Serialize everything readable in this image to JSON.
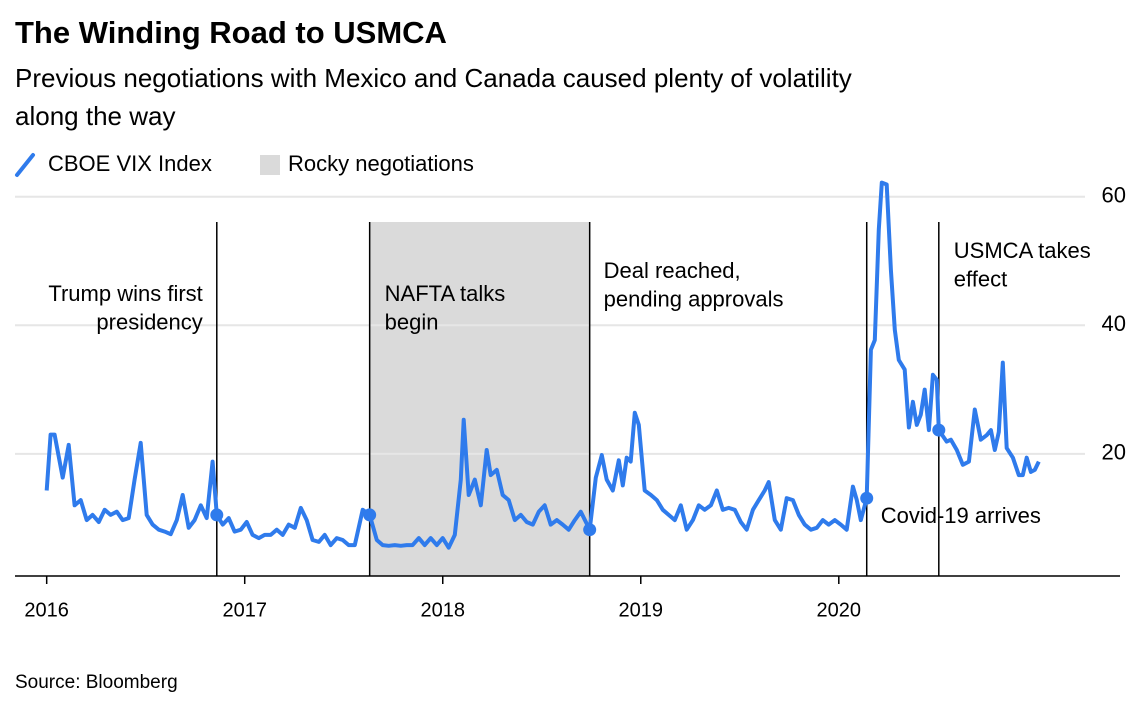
{
  "chart_data": {
    "type": "line",
    "title": "The Winding Road to USMCA",
    "subtitle": [
      "Previous negotiations with Mexico and Canada caused plenty of volatility",
      "along the way"
    ],
    "source": "Source: Bloomberg",
    "legend": {
      "shade": "Rocky negotiations"
    },
    "shade": {
      "from": 2017.631,
      "to": 2018.742,
      "color": "#dadada"
    },
    "events": [
      {
        "x": 2016.859,
        "label": [
          "Trump wins first",
          "presidency"
        ]
      },
      {
        "x": 2017.631,
        "label": [
          "NAFTA talks",
          "begin"
        ]
      },
      {
        "x": 2018.742,
        "label": [
          "Deal reached,",
          "pending approvals"
        ]
      },
      {
        "x": 2020.141,
        "label": [
          "Covid-19 arrives"
        ]
      },
      {
        "x": 2020.505,
        "label": [
          "USMCA takes",
          "effect"
        ]
      }
    ],
    "x": [
      2016.0,
      2016.02,
      2016.04,
      2016.081,
      2016.111,
      2016.141,
      2016.172,
      2016.202,
      2016.232,
      2016.263,
      2016.293,
      2016.323,
      2016.354,
      2016.384,
      2016.414,
      2016.444,
      2016.475,
      2016.505,
      2016.535,
      2016.566,
      2016.596,
      2016.626,
      2016.657,
      2016.687,
      2016.717,
      2016.747,
      2016.778,
      2016.808,
      2016.838,
      2016.859,
      2016.889,
      2016.919,
      2016.949,
      2016.98,
      2017.01,
      2017.04,
      2017.071,
      2017.101,
      2017.131,
      2017.162,
      2017.192,
      2017.222,
      2017.253,
      2017.283,
      2017.313,
      2017.343,
      2017.374,
      2017.404,
      2017.434,
      2017.465,
      2017.495,
      2017.525,
      2017.556,
      2017.596,
      2017.631,
      2017.667,
      2017.697,
      2017.727,
      2017.758,
      2017.788,
      2017.818,
      2017.848,
      2017.879,
      2017.909,
      2017.939,
      2017.97,
      2018.0,
      2018.03,
      2018.061,
      2018.091,
      2018.106,
      2018.131,
      2018.162,
      2018.192,
      2018.222,
      2018.242,
      2018.273,
      2018.303,
      2018.333,
      2018.364,
      2018.394,
      2018.424,
      2018.455,
      2018.485,
      2018.515,
      2018.545,
      2018.576,
      2018.606,
      2018.636,
      2018.667,
      2018.697,
      2018.742,
      2018.773,
      2018.803,
      2018.828,
      2018.859,
      2018.889,
      2018.909,
      2018.929,
      2018.949,
      2018.97,
      2018.99,
      2019.02,
      2019.051,
      2019.081,
      2019.111,
      2019.141,
      2019.172,
      2019.202,
      2019.232,
      2019.263,
      2019.293,
      2019.323,
      2019.354,
      2019.384,
      2019.414,
      2019.444,
      2019.475,
      2019.505,
      2019.535,
      2019.566,
      2019.596,
      2019.626,
      2019.646,
      2019.677,
      2019.707,
      2019.737,
      2019.768,
      2019.798,
      2019.828,
      2019.859,
      2019.889,
      2019.919,
      2019.949,
      2019.98,
      2020.01,
      2020.04,
      2020.071,
      2020.091,
      2020.111,
      2020.141,
      2020.162,
      2020.182,
      2020.202,
      2020.217,
      2020.242,
      2020.263,
      2020.283,
      2020.303,
      2020.333,
      2020.354,
      2020.374,
      2020.394,
      2020.414,
      2020.434,
      2020.455,
      2020.475,
      2020.495,
      2020.505,
      2020.545,
      2020.566,
      2020.596,
      2020.626,
      2020.657,
      2020.687,
      2020.717,
      2020.747,
      2020.768,
      2020.788,
      2020.808,
      2020.828,
      2020.848,
      2020.879,
      2020.909,
      2020.929,
      2020.949,
      2020.97,
      2020.99,
      2021.01
    ],
    "series": [
      {
        "name": "CBOE VIX Index",
        "color": "#2f7bec",
        "values": [
          14.3,
          23,
          23,
          16.3,
          21.4,
          12,
          12.8,
          9.7,
          10.5,
          9.4,
          11.3,
          10.5,
          11,
          9.7,
          10,
          16,
          21.7,
          10.5,
          9,
          8.2,
          7.9,
          7.5,
          9.7,
          13.6,
          8.5,
          9.7,
          12,
          10,
          18.8,
          10.5,
          9,
          10,
          7.9,
          8.2,
          9.4,
          7.4,
          6.9,
          7.4,
          7.4,
          8.2,
          7.4,
          9,
          8.5,
          11.6,
          9.7,
          6.6,
          6.3,
          7.4,
          5.8,
          6.9,
          6.6,
          5.8,
          5.8,
          11.3,
          10.5,
          6.6,
          5.8,
          5.7,
          5.8,
          5.7,
          5.8,
          5.8,
          6.9,
          5.8,
          6.9,
          5.8,
          6.9,
          5.4,
          7.4,
          16,
          25.3,
          13.6,
          16,
          12,
          20.6,
          16.7,
          17.5,
          13.6,
          12.8,
          9.7,
          10.5,
          9.4,
          9,
          11,
          12,
          9,
          9.7,
          9,
          8.2,
          9.7,
          11,
          8.2,
          16.3,
          19.8,
          16,
          14.3,
          19,
          15.1,
          19.4,
          18.8,
          26.4,
          24.5,
          14.3,
          13.6,
          12.8,
          11.3,
          10.5,
          9.7,
          12,
          8.2,
          9.7,
          12,
          11.3,
          12,
          14.3,
          11.3,
          11.6,
          11.3,
          9.4,
          8.2,
          11.3,
          12.8,
          14.3,
          15.6,
          9.7,
          8.2,
          13.1,
          12.8,
          10.5,
          9,
          8.2,
          8.5,
          9.7,
          9,
          9.7,
          9,
          8.2,
          14.9,
          12.8,
          9.7,
          13.1,
          36.2,
          37.7,
          54.9,
          62.2,
          61.9,
          48.6,
          39.3,
          34.6,
          33.1,
          24.1,
          28.1,
          24.5,
          26.1,
          30,
          23.7,
          32.3,
          31.5,
          23.7,
          21.9,
          22.2,
          20.6,
          18.3,
          18.8,
          26.9,
          22.2,
          22.9,
          23.7,
          20.6,
          23.4,
          34.2,
          20.9,
          19.4,
          16.7,
          16.7,
          19.4,
          17.2,
          17.5,
          18.8
        ]
      }
    ],
    "xlim": [
      2015.84,
      2021.42
    ],
    "xticks": [
      2016,
      2017,
      2018,
      2019,
      2020
    ],
    "ylim": [
      1,
      64
    ],
    "yticks": [
      20,
      40,
      60
    ],
    "grid": true
  }
}
